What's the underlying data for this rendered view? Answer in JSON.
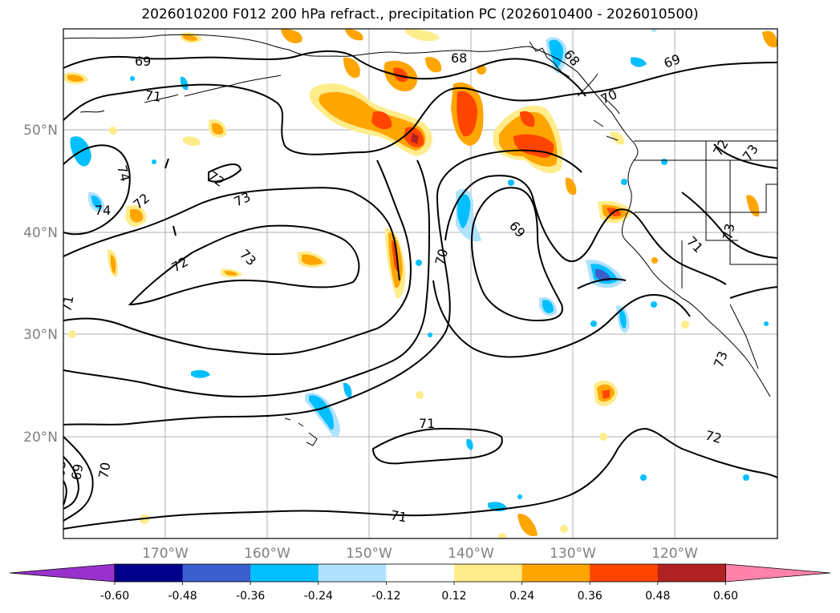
{
  "title": "2026010200 F012 200 hPa refract., precipitation PC (2026010400 - 2026010500)",
  "map": {
    "lat_labels": [
      "50°N",
      "40°N",
      "30°N",
      "20°N"
    ],
    "lon_labels": [
      "170°W",
      "160°W",
      "150°W",
      "140°W",
      "130°W",
      "120°W"
    ],
    "contour_labels": [
      "69",
      "68",
      "68",
      "69",
      "71",
      "70",
      "72",
      "73",
      "72",
      "74",
      "72",
      "73",
      "74",
      "69",
      "70",
      "72",
      "73",
      "71",
      "73",
      "71",
      "73",
      "71",
      "72",
      "71",
      "68",
      "69",
      "70"
    ]
  },
  "colorbar": {
    "ticks": [
      "-0.60",
      "-0.48",
      "-0.36",
      "-0.24",
      "-0.12",
      "0.12",
      "0.24",
      "0.36",
      "0.48",
      "0.60"
    ],
    "colors": [
      "#9932cc",
      "#00008b",
      "#3a5fcd",
      "#00bfff",
      "#b0e2ff",
      "#ffffff",
      "#ffec8b",
      "#ffa500",
      "#ff4500",
      "#b22222",
      "#ff82ab"
    ]
  },
  "colors": {
    "pos1": "#ffec8b",
    "pos2": "#ffa500",
    "pos3": "#ff4500",
    "pos4": "#b22222",
    "neg1": "#b0e2ff",
    "neg2": "#00bfff",
    "neg3": "#3a5fcd",
    "neg4": "#00008b"
  }
}
